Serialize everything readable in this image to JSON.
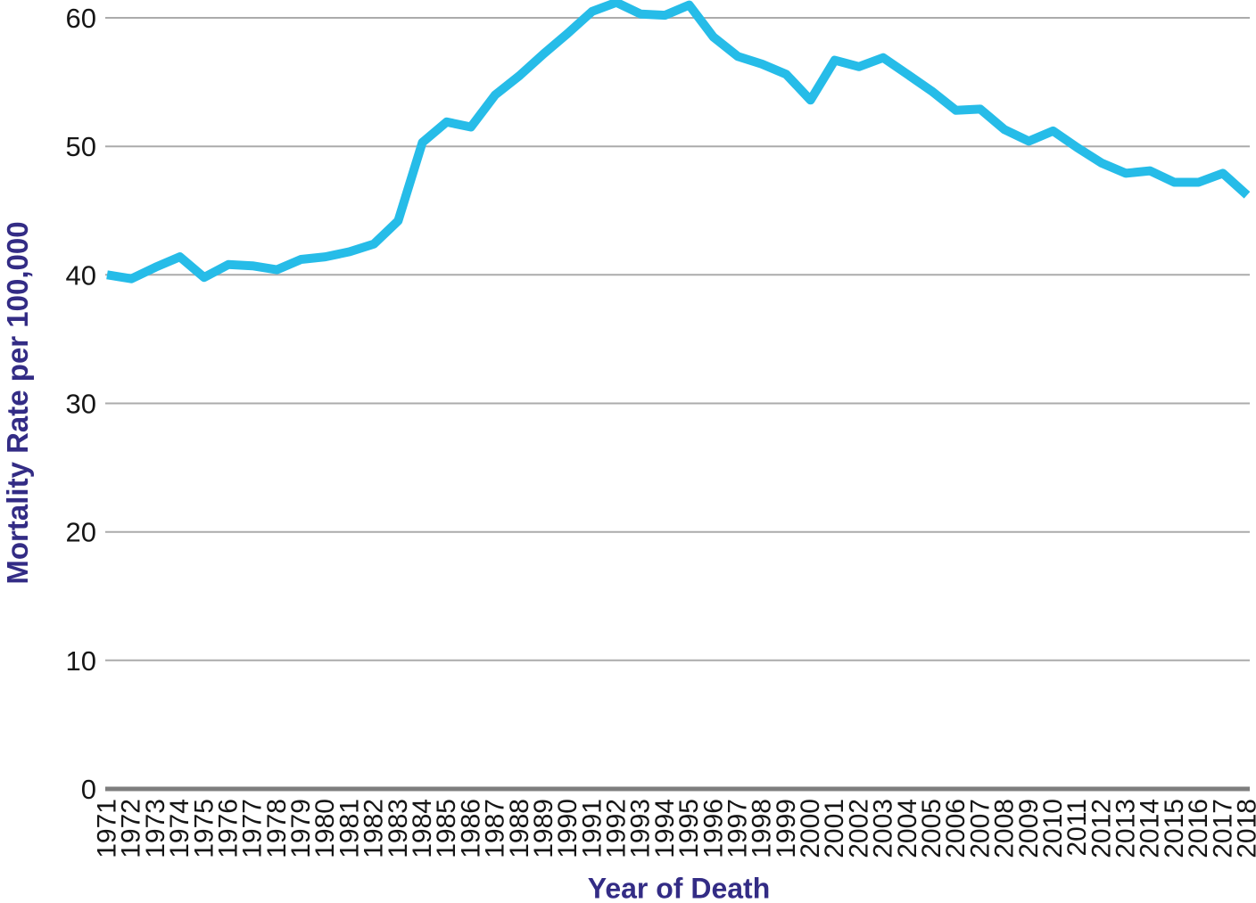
{
  "chart_data": {
    "type": "line",
    "title": "",
    "xlabel": "Year of Death",
    "ylabel": "Mortality Rate per 100,000",
    "x": [
      "1971",
      "1972",
      "1973",
      "1974",
      "1975",
      "1976",
      "1977",
      "1978",
      "1979",
      "1980",
      "1981",
      "1982",
      "1983",
      "1984",
      "1985",
      "1986",
      "1987",
      "1988",
      "1989",
      "1990",
      "1991",
      "1992",
      "1993",
      "1994",
      "1995",
      "1996",
      "1997",
      "1998",
      "1999",
      "2000",
      "2001",
      "2002",
      "2003",
      "2004",
      "2005",
      "2006",
      "2007",
      "2008",
      "2009",
      "2010",
      "2011",
      "2012",
      "2013",
      "2014",
      "2015",
      "2016",
      "2017",
      "2018"
    ],
    "series": [
      {
        "name": "Mortality Rate per 100,000",
        "values": [
          40.0,
          39.7,
          40.6,
          41.4,
          39.8,
          40.8,
          40.7,
          40.4,
          41.2,
          41.4,
          41.8,
          42.4,
          44.2,
          50.3,
          51.9,
          51.5,
          54.0,
          55.5,
          57.2,
          58.8,
          60.5,
          61.2,
          60.3,
          60.2,
          61.0,
          58.5,
          57.0,
          56.4,
          55.6,
          53.6,
          56.7,
          56.2,
          56.9,
          55.6,
          54.3,
          52.8,
          52.9,
          51.3,
          50.4,
          51.2,
          49.9,
          48.7,
          47.9,
          48.1,
          47.2,
          47.2,
          47.9,
          46.2
        ]
      }
    ],
    "yticks": [
      0,
      10,
      20,
      30,
      40,
      50,
      60
    ],
    "ylim": [
      0,
      61.4
    ],
    "grid": "horizontal",
    "legend_position": "none",
    "colors": {
      "line": "#26BCE8",
      "gridline": "#ABABAB",
      "axis_line": "#7E7E7E",
      "tick_label": "#161616",
      "axis_title": "#332C85"
    }
  }
}
